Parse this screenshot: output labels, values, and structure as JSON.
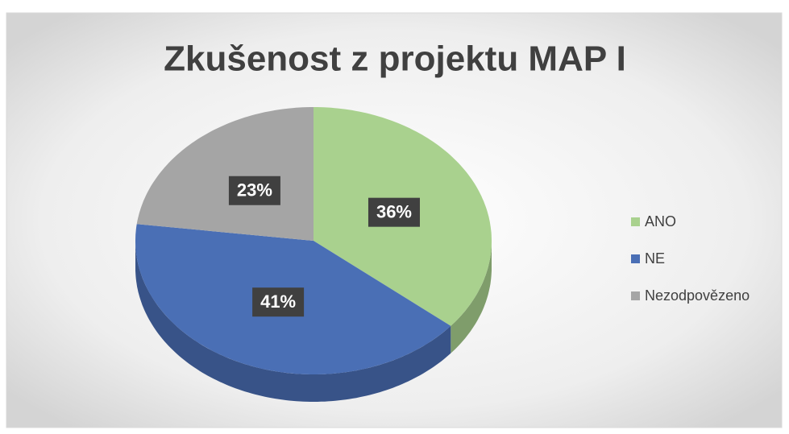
{
  "chart_data": {
    "type": "pie",
    "title": "Zkušenost z projektu MAP I",
    "categories": [
      "ANO",
      "NE",
      "Nezodpovězeno"
    ],
    "values": [
      36,
      41,
      23
    ],
    "value_labels": [
      "36%",
      "41%",
      "23%"
    ],
    "colors": [
      "#a9d18e",
      "#4a6fb5",
      "#a5a5a5"
    ],
    "legend": "right"
  }
}
